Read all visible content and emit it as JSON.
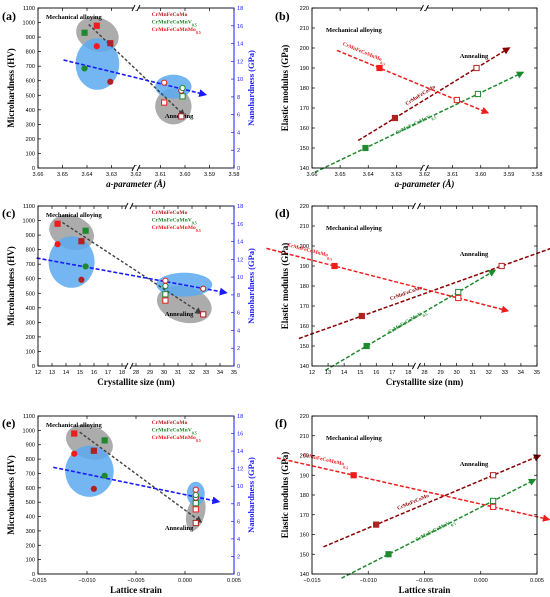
{
  "colors": {
    "CrMnFeCoMo": "#b22222",
    "CrMnFeCoMnV": "#1e8a2e",
    "CrMnFeCoMnMo": "#ee1c1c",
    "nano_axis": "#1a1aff",
    "gray_ellipse": "#9e9e9e",
    "blue_ellipse": "#5aa9f0",
    "gray_arrow": "#404040",
    "blue_arrow": "#1a1aff",
    "elastic_red": "#ee1c1c",
    "elastic_dark": "#8b0000",
    "elastic_green": "#1e8a2e"
  },
  "legend_labels": [
    "CrMnFeCoMo",
    "CrMnFeCoMnV0.5",
    "CrMnFeCoMnMo0.5"
  ],
  "annotations": {
    "mechanical": "Mechanical alloying",
    "annealing": "Annealing"
  },
  "chart_data": [
    {
      "panel": "(a)",
      "type": "scatter",
      "xlabel": "a-parameter (Å)",
      "ylabel": "Microhardness (HV)",
      "y2label": "Nanohardness (GPa)",
      "xlim": [
        3.66,
        3.58
      ],
      "ylim": [
        0,
        1100
      ],
      "y2lim": [
        0,
        18
      ],
      "xticks": [
        "3.66",
        "3.65",
        "3.64",
        "3.63",
        "3.62",
        "3.61",
        "3.60",
        "3.59",
        "3.58"
      ],
      "yticks": [
        "0",
        "100",
        "200",
        "300",
        "400",
        "500",
        "600",
        "700",
        "800",
        "900",
        "1000",
        "1100"
      ],
      "y2ticks": [
        "0",
        "2",
        "4",
        "6",
        "8",
        "10",
        "12",
        "14",
        "16",
        "18"
      ],
      "legend": true,
      "series": [
        {
          "name": "CrMnFeCoMo",
          "axis": "left",
          "x": [
            3.6305,
            3.6015
          ],
          "y": [
            858,
            355
          ]
        },
        {
          "name": "CrMnFeCoMnV0.5",
          "axis": "left",
          "x": [
            3.641,
            3.601
          ],
          "y": [
            930,
            493
          ]
        },
        {
          "name": "CrMnFeCoMnMo0.5",
          "axis": "left",
          "x": [
            3.636,
            3.6085
          ],
          "y": [
            978,
            450
          ]
        },
        {
          "name": "CrMnFeCoMo",
          "axis": "right",
          "x": [
            3.6305,
            3.6015
          ],
          "y": [
            9.7,
            8.7
          ]
        },
        {
          "name": "CrMnFeCoMnV0.5",
          "axis": "right",
          "x": [
            3.641,
            3.601
          ],
          "y": [
            11.2,
            9.0
          ]
        },
        {
          "name": "CrMnFeCoMnMo0.5",
          "axis": "right",
          "x": [
            3.636,
            3.6085
          ],
          "y": [
            13.7,
            9.6
          ]
        }
      ]
    },
    {
      "panel": "(b)",
      "type": "scatter",
      "xlabel": "a-parameter (Å)",
      "ylabel": "Elastic modulus (GPa)",
      "xlim": [
        3.66,
        3.58
      ],
      "ylim": [
        140,
        220
      ],
      "xticks": [
        "3.66",
        "3.65",
        "3.64",
        "3.63",
        "3.62",
        "3.61",
        "3.60",
        "3.59",
        "3.58"
      ],
      "yticks": [
        "140",
        "150",
        "160",
        "170",
        "180",
        "190",
        "200",
        "210",
        "220"
      ],
      "series": [
        {
          "name": "CrMnFeCoMo",
          "x": [
            3.6305,
            3.6015
          ],
          "y": [
            165,
            190
          ]
        },
        {
          "name": "CrMnFeCoMnV0.5",
          "x": [
            3.641,
            3.601
          ],
          "y": [
            150,
            177
          ]
        },
        {
          "name": "CrMnFeCoMnMo0.5",
          "x": [
            3.636,
            3.6085
          ],
          "y": [
            190,
            174
          ]
        }
      ],
      "trend_labels": [
        "CrMnFeCoMnMo0.5",
        "CrMnFeCoMo",
        "CrMnFeCoMnV0.5"
      ]
    },
    {
      "panel": "(c)",
      "type": "scatter",
      "xlabel": "Crystallite size (nm)",
      "ylabel": "Microhardness (HV)",
      "y2label": "Nanohardness (GPa)",
      "xlim": [
        12,
        35
      ],
      "ylim": [
        0,
        1100
      ],
      "y2lim": [
        0,
        18
      ],
      "xticks": [
        "12",
        "13",
        "14",
        "15",
        "16",
        "17",
        "18",
        "28",
        "29",
        "30",
        "31",
        "32",
        "33",
        "34",
        "35"
      ],
      "yticks": [
        "0",
        "100",
        "200",
        "300",
        "400",
        "500",
        "600",
        "700",
        "800",
        "900",
        "1000",
        "1100"
      ],
      "y2ticks": [
        "0",
        "2",
        "4",
        "6",
        "8",
        "10",
        "12",
        "14",
        "16",
        "18"
      ],
      "legend": true,
      "series": [
        {
          "name": "CrMnFeCoMo",
          "axis": "left",
          "x": [
            15.1,
            32.8
          ],
          "y": [
            858,
            355
          ]
        },
        {
          "name": "CrMnFeCoMnV0.5",
          "axis": "left",
          "x": [
            15.4,
            30.1
          ],
          "y": [
            930,
            493
          ]
        },
        {
          "name": "CrMnFeCoMnMo0.5",
          "axis": "left",
          "x": [
            13.4,
            30.1
          ],
          "y": [
            978,
            450
          ]
        },
        {
          "name": "CrMnFeCoMo",
          "axis": "right",
          "x": [
            15.1,
            32.8
          ],
          "y": [
            9.7,
            8.7
          ]
        },
        {
          "name": "CrMnFeCoMnV0.5",
          "axis": "right",
          "x": [
            15.4,
            30.1
          ],
          "y": [
            11.2,
            9.0
          ]
        },
        {
          "name": "CrMnFeCoMnMo0.5",
          "axis": "right",
          "x": [
            13.4,
            30.1
          ],
          "y": [
            13.7,
            9.6
          ]
        }
      ]
    },
    {
      "panel": "(d)",
      "type": "scatter",
      "xlabel": "Crystallite size (nm)",
      "ylabel": "Elastic modulus (GPa)",
      "xlim": [
        12,
        35
      ],
      "ylim": [
        140,
        220
      ],
      "xticks": [
        "12",
        "13",
        "14",
        "15",
        "16",
        "17",
        "18",
        "28",
        "29",
        "30",
        "31",
        "32",
        "33",
        "34",
        "35"
      ],
      "yticks": [
        "140",
        "150",
        "160",
        "170",
        "180",
        "190",
        "200",
        "210",
        "220"
      ],
      "series": [
        {
          "name": "CrMnFeCoMo",
          "x": [
            15.1,
            32.8
          ],
          "y": [
            165,
            190
          ]
        },
        {
          "name": "CrMnFeCoMnV0.5",
          "x": [
            15.4,
            30.1
          ],
          "y": [
            150,
            177
          ]
        },
        {
          "name": "CrMnFeCoMnMo0.5",
          "x": [
            13.4,
            30.1
          ],
          "y": [
            190,
            174
          ]
        }
      ],
      "trend_labels": [
        "CrMnFeCoMnMo0.5",
        "CrMnFeCoMo",
        "CrMnFeCoMnV0.5"
      ]
    },
    {
      "panel": "(e)",
      "type": "scatter",
      "xlabel": "Lattice strain",
      "ylabel": "Microhardness (HV)",
      "y2label": "Nanohardness (GPa)",
      "xlim": [
        -0.015,
        0.005
      ],
      "ylim": [
        0,
        1100
      ],
      "y2lim": [
        0,
        18
      ],
      "xticks": [
        "−0.015",
        "−0.010",
        "−0.005",
        "0.000",
        "0.005"
      ],
      "yticks": [
        "0",
        "100",
        "200",
        "300",
        "400",
        "500",
        "600",
        "700",
        "800",
        "900",
        "1000",
        "1100"
      ],
      "y2ticks": [
        "0",
        "2",
        "4",
        "6",
        "8",
        "10",
        "12",
        "14",
        "16",
        "18"
      ],
      "legend": true,
      "series": [
        {
          "name": "CrMnFeCoMo",
          "axis": "left",
          "x": [
            -0.0093,
            0.0011
          ],
          "y": [
            858,
            355
          ]
        },
        {
          "name": "CrMnFeCoMnV0.5",
          "axis": "left",
          "x": [
            -0.0082,
            0.0011
          ],
          "y": [
            930,
            493
          ]
        },
        {
          "name": "CrMnFeCoMnMo0.5",
          "axis": "left",
          "x": [
            -0.0113,
            0.0011
          ],
          "y": [
            978,
            450
          ]
        },
        {
          "name": "CrMnFeCoMo",
          "axis": "right",
          "x": [
            -0.0093,
            0.0011
          ],
          "y": [
            9.7,
            8.7
          ]
        },
        {
          "name": "CrMnFeCoMnV0.5",
          "axis": "right",
          "x": [
            -0.0082,
            0.0011
          ],
          "y": [
            11.2,
            9.0
          ]
        },
        {
          "name": "CrMnFeCoMnMo0.5",
          "axis": "right",
          "x": [
            -0.0113,
            0.0011
          ],
          "y": [
            13.7,
            9.6
          ]
        }
      ]
    },
    {
      "panel": "(f)",
      "type": "scatter",
      "xlabel": "Lattice strain",
      "ylabel": "Elastic modulus (GPa)",
      "xlim": [
        -0.015,
        0.005
      ],
      "ylim": [
        140,
        220
      ],
      "xticks": [
        "−0.015",
        "−0.010",
        "−0.005",
        "0.000",
        "0.005"
      ],
      "yticks": [
        "140",
        "150",
        "160",
        "170",
        "180",
        "190",
        "200",
        "210",
        "220"
      ],
      "series": [
        {
          "name": "CrMnFeCoMo",
          "x": [
            -0.0093,
            0.0011
          ],
          "y": [
            165,
            190
          ]
        },
        {
          "name": "CrMnFeCoMnV0.5",
          "x": [
            -0.0082,
            0.0011
          ],
          "y": [
            150,
            177
          ]
        },
        {
          "name": "CrMnFeCoMnMo0.5",
          "x": [
            -0.0113,
            0.0011
          ],
          "y": [
            190,
            174
          ]
        }
      ],
      "trend_labels": [
        "CrMnFeCoMnMo0.5",
        "CrMnFeCoMo",
        "CrMnFeCoMnV0.5"
      ]
    }
  ]
}
